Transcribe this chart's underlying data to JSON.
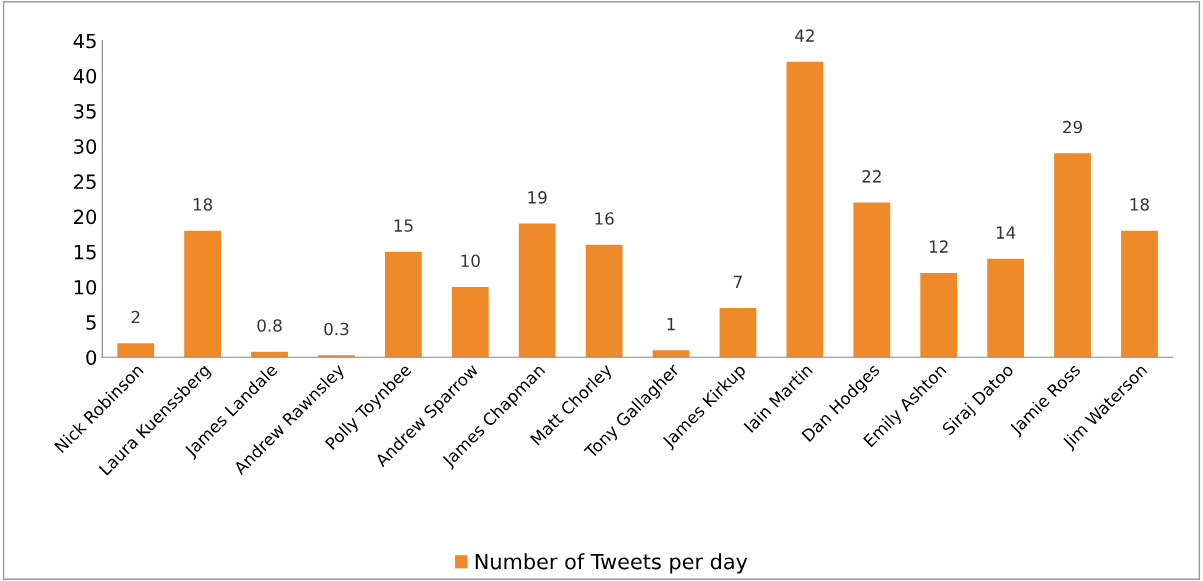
{
  "chart_data": {
    "type": "bar",
    "categories": [
      "Nick Robinson",
      "Laura Kuenssberg",
      "James Landale",
      "Andrew Rawnsley",
      "Polly Toynbee",
      "Andrew Sparrow",
      "James Chapman",
      "Matt Chorley",
      "Tony Gallagher",
      "James Kirkup",
      "Iain Martin",
      "Dan Hodges",
      "Emily Ashton",
      "Siraj Datoo",
      "Jamie Ross",
      "Jim Waterson"
    ],
    "series": [
      {
        "name": "Number of Tweets per day",
        "color": "#ee8a2a",
        "values": [
          2,
          18,
          0.8,
          0.3,
          15,
          10,
          19,
          16,
          1,
          7,
          42,
          22,
          12,
          14,
          29,
          18
        ]
      }
    ],
    "ylim": [
      0,
      45
    ],
    "yticks": [
      0,
      5,
      10,
      15,
      20,
      25,
      30,
      35,
      40,
      45
    ],
    "data_labels": true,
    "legend": "bottom",
    "grid": false
  }
}
